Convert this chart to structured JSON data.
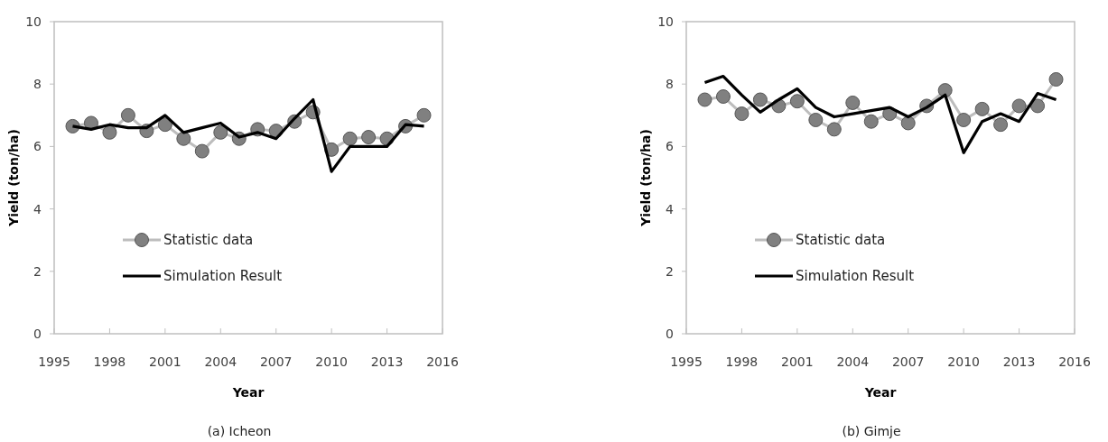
{
  "chart_data": [
    {
      "type": "line",
      "subtitle": "(a) Icheon",
      "xlabel": "Year",
      "ylabel": "Yield (ton/ha)",
      "xlim": [
        1995,
        2016
      ],
      "xticks": [
        1995,
        1998,
        2001,
        2004,
        2007,
        2010,
        2013,
        2016
      ],
      "ylim": [
        0,
        10
      ],
      "yticks": [
        0,
        2,
        4,
        6,
        8,
        10
      ],
      "legend": "left",
      "x": [
        1996,
        1997,
        1998,
        1999,
        2000,
        2001,
        2002,
        2003,
        2004,
        2005,
        2006,
        2007,
        2008,
        2009,
        2010,
        2011,
        2012,
        2013,
        2014,
        2015
      ],
      "series": [
        {
          "name": "Statistic data",
          "color": "#808080",
          "marker": "circle",
          "values": [
            6.65,
            6.75,
            6.45,
            7.0,
            6.5,
            6.7,
            6.25,
            5.85,
            6.45,
            6.25,
            6.55,
            6.5,
            6.8,
            7.1,
            5.9,
            6.25,
            6.3,
            6.25,
            6.65,
            7.0
          ]
        },
        {
          "name": "Simulation Result",
          "color": "#000000",
          "marker": "none",
          "values": [
            6.65,
            6.55,
            6.7,
            6.6,
            6.6,
            7.0,
            6.45,
            6.6,
            6.75,
            6.3,
            6.45,
            6.25,
            6.9,
            7.5,
            5.2,
            6.0,
            6.0,
            6.0,
            6.7,
            6.65
          ]
        }
      ]
    },
    {
      "type": "line",
      "subtitle": "(b) Gimje",
      "xlabel": "Year",
      "ylabel": "Yield (ton/ha)",
      "xlim": [
        1995,
        2016
      ],
      "xticks": [
        1995,
        1998,
        2001,
        2004,
        2007,
        2010,
        2013,
        2016
      ],
      "ylim": [
        0,
        10
      ],
      "yticks": [
        0,
        2,
        4,
        6,
        8,
        10
      ],
      "legend": "left",
      "x": [
        1996,
        1997,
        1998,
        1999,
        2000,
        2001,
        2002,
        2003,
        2004,
        2005,
        2006,
        2007,
        2008,
        2009,
        2010,
        2011,
        2012,
        2013,
        2014,
        2015
      ],
      "series": [
        {
          "name": "Statistic data",
          "color": "#808080",
          "marker": "circle",
          "values": [
            7.5,
            7.6,
            7.05,
            7.5,
            7.3,
            7.45,
            6.85,
            6.55,
            7.4,
            6.8,
            7.05,
            6.75,
            7.3,
            7.8,
            6.85,
            7.2,
            6.7,
            7.3,
            7.3,
            8.15
          ]
        },
        {
          "name": "Simulation Result",
          "color": "#000000",
          "marker": "none",
          "values": [
            8.05,
            8.25,
            7.65,
            7.1,
            7.5,
            7.85,
            7.25,
            6.95,
            7.05,
            7.15,
            7.25,
            6.95,
            7.25,
            7.65,
            5.8,
            6.8,
            7.05,
            6.8,
            7.7,
            7.5
          ]
        }
      ]
    }
  ]
}
